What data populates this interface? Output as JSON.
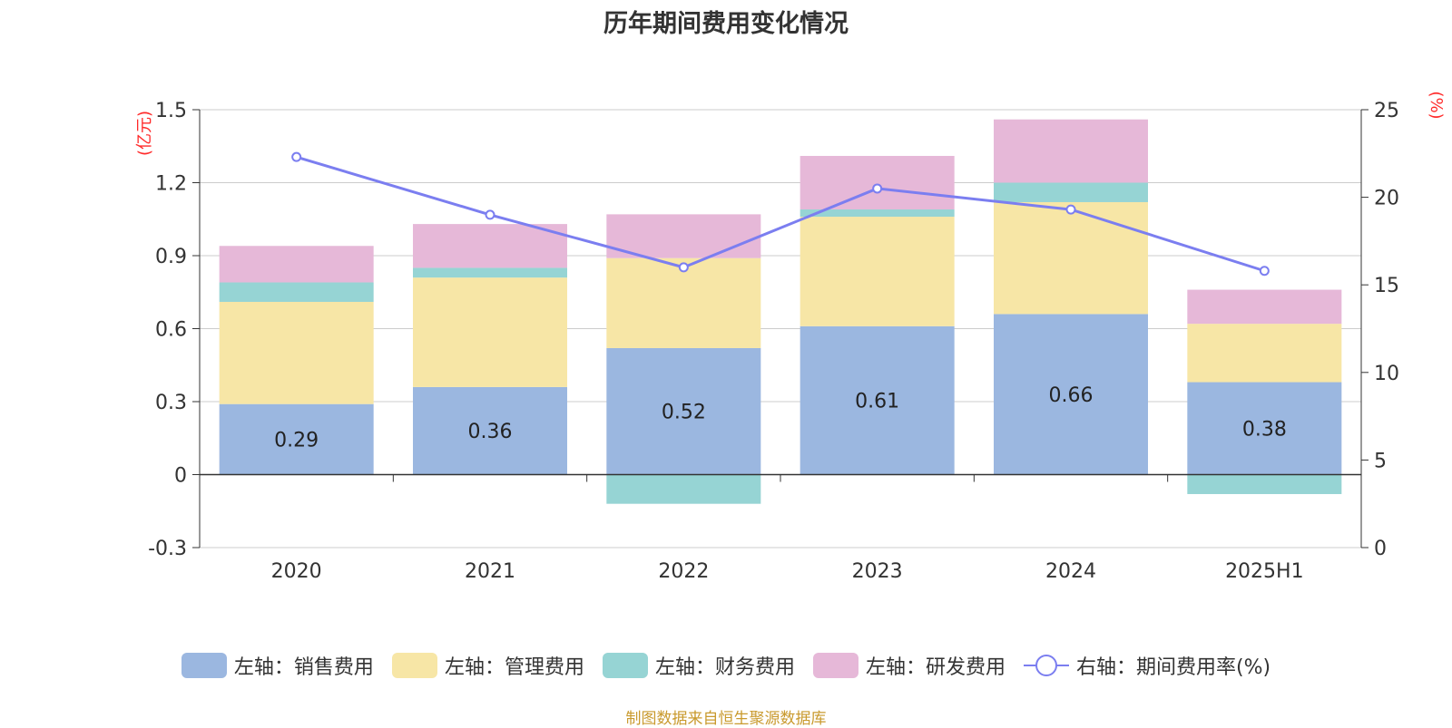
{
  "title": "历年期间费用变化情况",
  "source_note": "制图数据来自恒生聚源数据库",
  "colors": {
    "sales": "#9bb7e0",
    "admin": "#f7e6a6",
    "finance": "#96d4d4",
    "rd": "#e6b8d8",
    "rate": "#7b7ef0",
    "axis_unit": "#ff2a2a"
  },
  "chart_data": {
    "type": "bar",
    "stacked": true,
    "categories": [
      "2020",
      "2021",
      "2022",
      "2023",
      "2024",
      "2025H1"
    ],
    "left_axis": {
      "unit": "(亿元)",
      "ylim": [
        -0.3,
        1.5
      ],
      "ticks": [
        "1.5",
        "1.2",
        "0.9",
        "0.6",
        "0.3",
        "0",
        "-0.3"
      ],
      "tick_values": [
        1.5,
        1.2,
        0.9,
        0.6,
        0.3,
        0,
        -0.3
      ]
    },
    "right_axis": {
      "unit": "(%)",
      "ylim": [
        0,
        25
      ],
      "ticks": [
        "25",
        "20",
        "15",
        "10",
        "5",
        "0"
      ],
      "tick_values": [
        25,
        20,
        15,
        10,
        5,
        0
      ]
    },
    "series": [
      {
        "name": "左轴：销售费用",
        "key": "sales",
        "values": [
          0.29,
          0.36,
          0.52,
          0.61,
          0.66,
          0.38
        ],
        "labels": [
          "0.29",
          "0.36",
          "0.52",
          "0.61",
          "0.66",
          "0.38"
        ]
      },
      {
        "name": "左轴：管理费用",
        "key": "admin",
        "values": [
          0.42,
          0.45,
          0.37,
          0.45,
          0.46,
          0.24
        ]
      },
      {
        "name": "左轴：财务费用",
        "key": "finance",
        "values": [
          0.08,
          0.04,
          -0.12,
          0.03,
          0.08,
          -0.08
        ]
      },
      {
        "name": "左轴：研发费用",
        "key": "rd",
        "values": [
          0.15,
          0.18,
          0.18,
          0.22,
          0.26,
          0.14
        ]
      }
    ],
    "line_series": {
      "name": "右轴：期间费用率(%)",
      "key": "rate",
      "values": [
        22.3,
        19.0,
        16.0,
        20.5,
        19.3,
        15.8
      ]
    },
    "grid": true,
    "legend_position": "bottom"
  }
}
